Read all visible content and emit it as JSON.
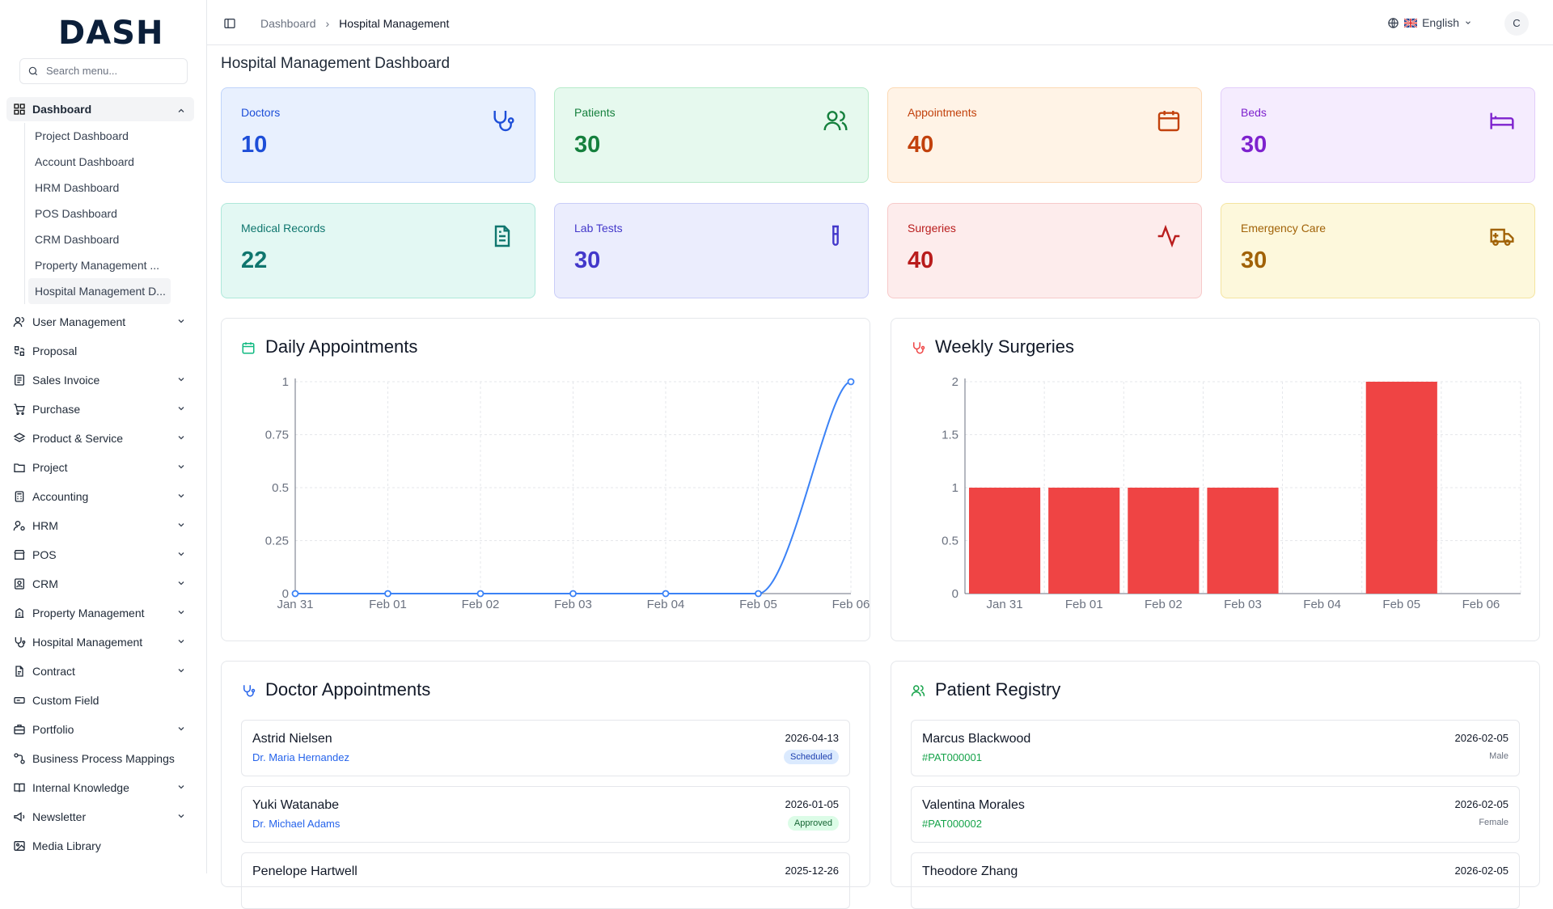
{
  "app": {
    "logo": "DASH",
    "search_placeholder": "Search menu..."
  },
  "sidebar": {
    "dashboard": {
      "label": "Dashboard",
      "children": [
        "Project Dashboard",
        "Account Dashboard",
        "HRM Dashboard",
        "POS Dashboard",
        "CRM Dashboard",
        "Property Management ...",
        "Hospital Management D..."
      ]
    },
    "items": [
      {
        "label": "User Management",
        "icon": "users-icon",
        "chevron": true
      },
      {
        "label": "Proposal",
        "icon": "proposal-icon",
        "chevron": false
      },
      {
        "label": "Sales Invoice",
        "icon": "invoice-icon",
        "chevron": true
      },
      {
        "label": "Purchase",
        "icon": "cart-icon",
        "chevron": true
      },
      {
        "label": "Product & Service",
        "icon": "layers-icon",
        "chevron": true
      },
      {
        "label": "Project",
        "icon": "folder-icon",
        "chevron": true
      },
      {
        "label": "Accounting",
        "icon": "calculator-icon",
        "chevron": true
      },
      {
        "label": "HRM",
        "icon": "user-cog-icon",
        "chevron": true
      },
      {
        "label": "POS",
        "icon": "store-icon",
        "chevron": true
      },
      {
        "label": "CRM",
        "icon": "contact-icon",
        "chevron": true
      },
      {
        "label": "Property Management",
        "icon": "building-icon",
        "chevron": true
      },
      {
        "label": "Hospital Management",
        "icon": "stethoscope-icon",
        "chevron": true
      },
      {
        "label": "Contract",
        "icon": "contract-icon",
        "chevron": true
      },
      {
        "label": "Custom Field",
        "icon": "field-icon",
        "chevron": false
      },
      {
        "label": "Portfolio",
        "icon": "portfolio-icon",
        "chevron": true
      },
      {
        "label": "Business Process Mappings",
        "icon": "workflow-icon",
        "chevron": false
      },
      {
        "label": "Internal Knowledge",
        "icon": "book-icon",
        "chevron": true
      },
      {
        "label": "Newsletter",
        "icon": "megaphone-icon",
        "chevron": true
      },
      {
        "label": "Media Library",
        "icon": "image-icon",
        "chevron": false
      }
    ]
  },
  "topbar": {
    "breadcrumb": [
      "Dashboard",
      "Hospital Management"
    ],
    "language": "English",
    "avatar": "C"
  },
  "page": {
    "title": "Hospital Management Dashboard"
  },
  "stats": [
    {
      "label": "Doctors",
      "value": "10",
      "color": "#1d4ed8",
      "bg": "#e8f0fe",
      "border": "#bfd4fb",
      "icon": "stethoscope-icon"
    },
    {
      "label": "Patients",
      "value": "30",
      "color": "#15803d",
      "bg": "#e6f9ee",
      "border": "#b6ebc9",
      "icon": "users-icon"
    },
    {
      "label": "Appointments",
      "value": "40",
      "color": "#c2410c",
      "bg": "#fff3e6",
      "border": "#fcd9b4",
      "icon": "calendar-icon"
    },
    {
      "label": "Beds",
      "value": "30",
      "color": "#7e22ce",
      "bg": "#f5ecfe",
      "border": "#e2cdfa",
      "icon": "bed-icon"
    },
    {
      "label": "Medical Records",
      "value": "22",
      "color": "#0f766e",
      "bg": "#e3f8f3",
      "border": "#aee8da",
      "icon": "file-icon"
    },
    {
      "label": "Lab Tests",
      "value": "30",
      "color": "#4338ca",
      "bg": "#ebedfd",
      "border": "#c9cdf8",
      "icon": "test-tube-icon"
    },
    {
      "label": "Surgeries",
      "value": "40",
      "color": "#b91c1c",
      "bg": "#fdecec",
      "border": "#f7c9c9",
      "icon": "activity-icon"
    },
    {
      "label": "Emergency Care",
      "value": "30",
      "color": "#a16207",
      "bg": "#fdf8dc",
      "border": "#f4e4a0",
      "icon": "ambulance-icon"
    }
  ],
  "panels": {
    "daily": "Daily Appointments",
    "weekly": "Weekly Surgeries",
    "doctor_appts": "Doctor Appointments",
    "patients": "Patient Registry"
  },
  "chart_data": [
    {
      "type": "line",
      "title": "Daily Appointments",
      "categories": [
        "Jan 31",
        "Feb 01",
        "Feb 02",
        "Feb 03",
        "Feb 04",
        "Feb 05",
        "Feb 06"
      ],
      "values": [
        0,
        0,
        0,
        0,
        0,
        0,
        1
      ],
      "ylim": [
        0,
        1
      ],
      "yticks": [
        "0",
        "0.25",
        "0.5",
        "0.75",
        "1"
      ],
      "color": "#3b82f6",
      "grid": true
    },
    {
      "type": "bar",
      "title": "Weekly Surgeries",
      "categories": [
        "Jan 31",
        "Feb 01",
        "Feb 02",
        "Feb 03",
        "Feb 04",
        "Feb 05",
        "Feb 06"
      ],
      "values": [
        1,
        1,
        1,
        1,
        0,
        2,
        0
      ],
      "ylim": [
        0,
        2
      ],
      "yticks": [
        "0",
        "0.5",
        "1",
        "1.5",
        "2"
      ],
      "color": "#ef4444",
      "grid": true
    }
  ],
  "appointments": [
    {
      "patient": "Astrid Nielsen",
      "doctor": "Dr. Maria Hernandez",
      "date": "2026-04-13",
      "status": "Scheduled",
      "status_bg": "#dbeafe",
      "status_fg": "#1e40af"
    },
    {
      "patient": "Yuki Watanabe",
      "doctor": "Dr. Michael Adams",
      "date": "2026-01-05",
      "status": "Approved",
      "status_bg": "#dcfce7",
      "status_fg": "#166534"
    },
    {
      "patient": "Penelope Hartwell",
      "doctor": "",
      "date": "2025-12-26",
      "status": "",
      "status_bg": "",
      "status_fg": ""
    }
  ],
  "registry": [
    {
      "name": "Marcus Blackwood",
      "id": "#PAT000001",
      "date": "2026-02-05",
      "gender": "Male"
    },
    {
      "name": "Valentina Morales",
      "id": "#PAT000002",
      "date": "2026-02-05",
      "gender": "Female"
    },
    {
      "name": "Theodore Zhang",
      "id": "",
      "date": "2026-02-05",
      "gender": ""
    }
  ]
}
